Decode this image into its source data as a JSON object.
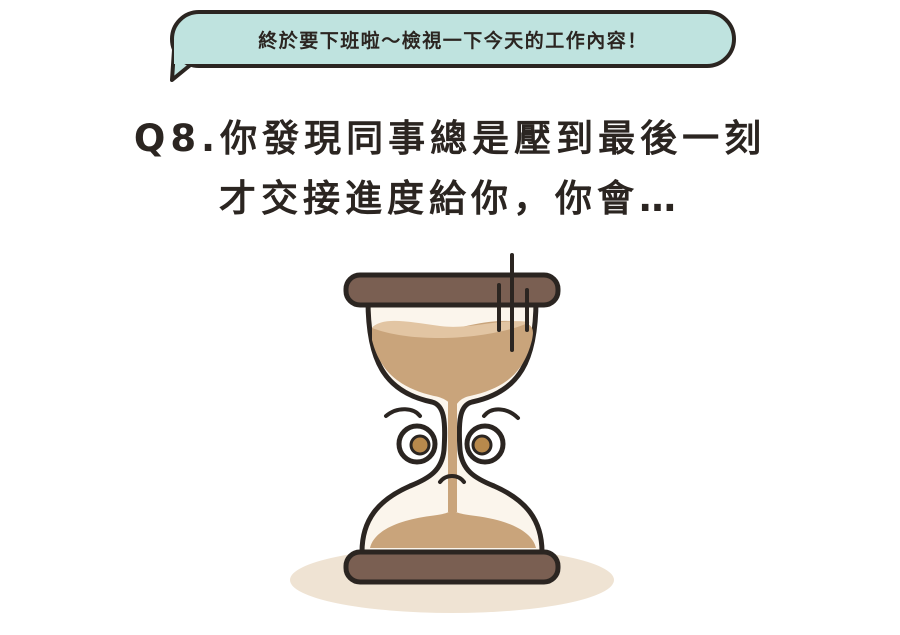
{
  "bubble": {
    "text": "終於要下班啦～檢視一下今天的工作內容！"
  },
  "question": {
    "line1": "Q8.你發現同事總是壓到最後一刻",
    "line2": "才交接進度給你，你會…"
  },
  "illustration": {
    "subject": "hourglass-character",
    "colors": {
      "outline": "#2b2521",
      "wood": "#7a5f52",
      "sand": "#c9a47b",
      "sand_light": "#e2c5a3",
      "glass": "#fbf5ec",
      "shadow": "#efe3d3",
      "eye": "#b8894c",
      "bubble": "#bfe3df"
    }
  }
}
